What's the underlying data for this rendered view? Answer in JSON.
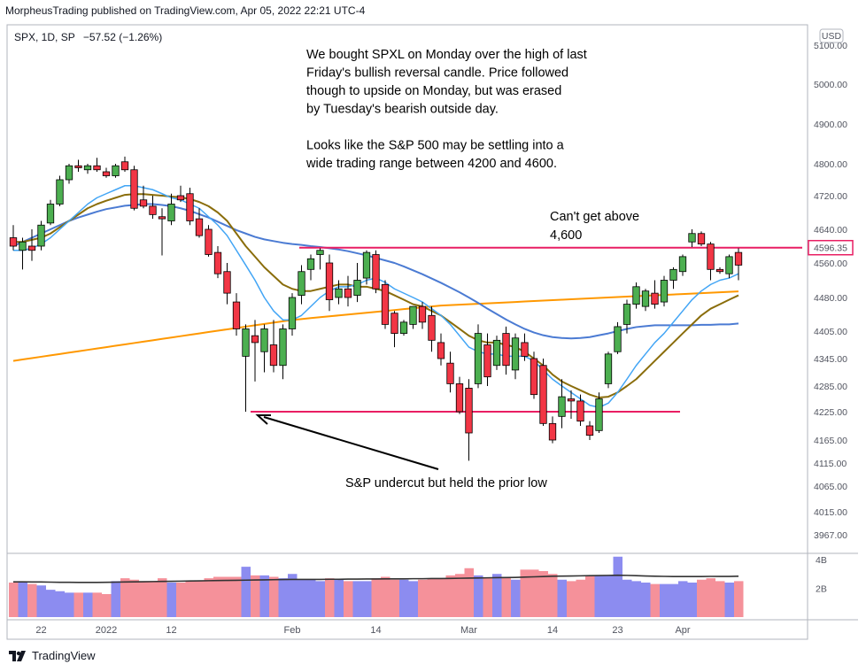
{
  "header": {
    "published": "MorpheusTrading published on TradingView.com, Apr 05, 2022 22:21 UTC-4"
  },
  "legend": {
    "symbol": "SPX, 1D, SP",
    "change": "−57.52 (−1.26%)",
    "currency": "USD"
  },
  "annotations": {
    "note_lines": [
      "We bought SPXL on Monday over the high of last",
      "Friday's bullish reversal candle.  Price followed",
      "though to upside on Monday, but was erased",
      "by Tuesday's bearish outside day.",
      "",
      "Looks like the S&P 500 may be settling into a",
      " wide trading range between 4200 and 4600."
    ],
    "resistance_lines": [
      "Can't get above",
      "4,600"
    ],
    "support_note": "S&P undercut but held the prior low"
  },
  "footer": {
    "brand": "TradingView"
  },
  "colors": {
    "up": "#4caf50",
    "down": "#f23645",
    "ma_blue": "#4b7bd3",
    "ma_orange": "#ff9800",
    "ma_olive": "#8a6d0b",
    "ma_light": "#42a5f5",
    "hline": "#e91e63",
    "vol_up": "#8c8cf0",
    "vol_down": "#f5919a",
    "vol_avg": "#333333"
  },
  "chart_data": {
    "type": "candlestick",
    "symbol": "SPX",
    "timeframe": "1D",
    "last_price_label": "4596.35",
    "price_ticks": [
      5100,
      5000,
      4900,
      4800,
      4720,
      4640,
      4560,
      4480,
      4405,
      4345,
      4285,
      4225,
      4165,
      4115,
      4065,
      4015,
      3967
    ],
    "price_tick_labels": [
      "5100.00",
      "5000.00",
      "4900.00",
      "4800.00",
      "4720.00",
      "4640.00",
      "4560.00",
      "4480.00",
      "4405.00",
      "4345.00",
      "4285.00",
      "4225.00",
      "4165.00",
      "4115.00",
      "4065.00",
      "4015.00",
      "3967.00"
    ],
    "date_ticks": [
      {
        "label": "22",
        "index": 3
      },
      {
        "label": "2022",
        "index": 10
      },
      {
        "label": "12",
        "index": 17
      },
      {
        "label": "Feb",
        "index": 30
      },
      {
        "label": "14",
        "index": 39
      },
      {
        "label": "Mar",
        "index": 49
      },
      {
        "label": "14",
        "index": 58
      },
      {
        "label": "23",
        "index": 65
      },
      {
        "label": "Apr",
        "index": 72
      }
    ],
    "candles": [
      {
        "o": 4620,
        "h": 4650,
        "l": 4590,
        "c": 4600
      },
      {
        "o": 4590,
        "h": 4620,
        "l": 4545,
        "c": 4610
      },
      {
        "o": 4600,
        "h": 4640,
        "l": 4565,
        "c": 4590
      },
      {
        "o": 4600,
        "h": 4660,
        "l": 4590,
        "c": 4650
      },
      {
        "o": 4655,
        "h": 4710,
        "l": 4650,
        "c": 4700
      },
      {
        "o": 4700,
        "h": 4770,
        "l": 4695,
        "c": 4760
      },
      {
        "o": 4760,
        "h": 4800,
        "l": 4750,
        "c": 4795
      },
      {
        "o": 4795,
        "h": 4810,
        "l": 4780,
        "c": 4790
      },
      {
        "o": 4785,
        "h": 4800,
        "l": 4775,
        "c": 4795
      },
      {
        "o": 4795,
        "h": 4815,
        "l": 4780,
        "c": 4785
      },
      {
        "o": 4780,
        "h": 4790,
        "l": 4765,
        "c": 4770
      },
      {
        "o": 4770,
        "h": 4800,
        "l": 4765,
        "c": 4795
      },
      {
        "o": 4805,
        "h": 4818,
        "l": 4780,
        "c": 4785
      },
      {
        "o": 4785,
        "h": 4795,
        "l": 4685,
        "c": 4690
      },
      {
        "o": 4710,
        "h": 4745,
        "l": 4690,
        "c": 4695
      },
      {
        "o": 4695,
        "h": 4720,
        "l": 4665,
        "c": 4675
      },
      {
        "o": 4670,
        "h": 4690,
        "l": 4578,
        "c": 4665
      },
      {
        "o": 4660,
        "h": 4725,
        "l": 4650,
        "c": 4700
      },
      {
        "o": 4720,
        "h": 4745,
        "l": 4705,
        "c": 4710
      },
      {
        "o": 4725,
        "h": 4740,
        "l": 4650,
        "c": 4660
      },
      {
        "o": 4665,
        "h": 4690,
        "l": 4620,
        "c": 4625
      },
      {
        "o": 4640,
        "h": 4650,
        "l": 4575,
        "c": 4580
      },
      {
        "o": 4585,
        "h": 4600,
        "l": 4525,
        "c": 4535
      },
      {
        "o": 4540,
        "h": 4560,
        "l": 4465,
        "c": 4490
      },
      {
        "o": 4470,
        "h": 4490,
        "l": 4395,
        "c": 4410
      },
      {
        "o": 4350,
        "h": 4420,
        "l": 4225,
        "c": 4410
      },
      {
        "o": 4395,
        "h": 4430,
        "l": 4295,
        "c": 4380
      },
      {
        "o": 4360,
        "h": 4420,
        "l": 4315,
        "c": 4410
      },
      {
        "o": 4375,
        "h": 4430,
        "l": 4315,
        "c": 4330
      },
      {
        "o": 4330,
        "h": 4420,
        "l": 4300,
        "c": 4410
      },
      {
        "o": 4410,
        "h": 4490,
        "l": 4395,
        "c": 4480
      },
      {
        "o": 4485,
        "h": 4555,
        "l": 4465,
        "c": 4540
      },
      {
        "o": 4545,
        "h": 4580,
        "l": 4520,
        "c": 4570
      },
      {
        "o": 4580,
        "h": 4595,
        "l": 4545,
        "c": 4590
      },
      {
        "o": 4560,
        "h": 4580,
        "l": 4450,
        "c": 4475
      },
      {
        "o": 4480,
        "h": 4520,
        "l": 4465,
        "c": 4500
      },
      {
        "o": 4500,
        "h": 4530,
        "l": 4460,
        "c": 4480
      },
      {
        "o": 4485,
        "h": 4560,
        "l": 4470,
        "c": 4520
      },
      {
        "o": 4525,
        "h": 4590,
        "l": 4510,
        "c": 4585
      },
      {
        "o": 4580,
        "h": 4590,
        "l": 4490,
        "c": 4500
      },
      {
        "o": 4510,
        "h": 4520,
        "l": 4410,
        "c": 4420
      },
      {
        "o": 4445,
        "h": 4450,
        "l": 4370,
        "c": 4400
      },
      {
        "o": 4400,
        "h": 4430,
        "l": 4395,
        "c": 4425
      },
      {
        "o": 4420,
        "h": 4460,
        "l": 4410,
        "c": 4460
      },
      {
        "o": 4460,
        "h": 4470,
        "l": 4410,
        "c": 4425
      },
      {
        "o": 4440,
        "h": 4460,
        "l": 4360,
        "c": 4385
      },
      {
        "o": 4380,
        "h": 4400,
        "l": 4330,
        "c": 4345
      },
      {
        "o": 4335,
        "h": 4360,
        "l": 4270,
        "c": 4290
      },
      {
        "o": 4290,
        "h": 4305,
        "l": 4220,
        "c": 4225
      },
      {
        "o": 4280,
        "h": 4300,
        "l": 4120,
        "c": 4180
      },
      {
        "o": 4290,
        "h": 4420,
        "l": 4280,
        "c": 4400
      },
      {
        "o": 4375,
        "h": 4400,
        "l": 4285,
        "c": 4305
      },
      {
        "o": 4330,
        "h": 4395,
        "l": 4320,
        "c": 4385
      },
      {
        "o": 4400,
        "h": 4415,
        "l": 4310,
        "c": 4330
      },
      {
        "o": 4320,
        "h": 4400,
        "l": 4300,
        "c": 4390
      },
      {
        "o": 4380,
        "h": 4400,
        "l": 4340,
        "c": 4350
      },
      {
        "o": 4345,
        "h": 4360,
        "l": 4255,
        "c": 4265
      },
      {
        "o": 4330,
        "h": 4345,
        "l": 4195,
        "c": 4200
      },
      {
        "o": 4200,
        "h": 4215,
        "l": 4158,
        "c": 4165
      },
      {
        "o": 4215,
        "h": 4300,
        "l": 4190,
        "c": 4260
      },
      {
        "o": 4255,
        "h": 4275,
        "l": 4210,
        "c": 4250
      },
      {
        "o": 4250,
        "h": 4265,
        "l": 4195,
        "c": 4205
      },
      {
        "o": 4195,
        "h": 4205,
        "l": 4165,
        "c": 4175
      },
      {
        "o": 4185,
        "h": 4270,
        "l": 4180,
        "c": 4255
      },
      {
        "o": 4290,
        "h": 4360,
        "l": 4280,
        "c": 4355
      },
      {
        "o": 4360,
        "h": 4425,
        "l": 4355,
        "c": 4415
      },
      {
        "o": 4420,
        "h": 4475,
        "l": 4400,
        "c": 4465
      },
      {
        "o": 4465,
        "h": 4515,
        "l": 4455,
        "c": 4505
      },
      {
        "o": 4460,
        "h": 4500,
        "l": 4450,
        "c": 4495
      },
      {
        "o": 4490,
        "h": 4520,
        "l": 4455,
        "c": 4465
      },
      {
        "o": 4470,
        "h": 4530,
        "l": 4460,
        "c": 4520
      },
      {
        "o": 4520,
        "h": 4550,
        "l": 4500,
        "c": 4545
      },
      {
        "o": 4540,
        "h": 4580,
        "l": 4530,
        "c": 4575
      },
      {
        "o": 4610,
        "h": 4640,
        "l": 4598,
        "c": 4630
      },
      {
        "o": 4630,
        "h": 4635,
        "l": 4600,
        "c": 4605
      },
      {
        "o": 4605,
        "h": 4610,
        "l": 4520,
        "c": 4545
      },
      {
        "o": 4545,
        "h": 4550,
        "l": 4535,
        "c": 4540
      },
      {
        "o": 4535,
        "h": 4580,
        "l": 4525,
        "c": 4575
      },
      {
        "o": 4585,
        "h": 4595,
        "l": 4520,
        "c": 4555
      }
    ],
    "ma_fast": [
      4590,
      4590,
      4595,
      4605,
      4620,
      4640,
      4660,
      4680,
      4700,
      4715,
      4725,
      4735,
      4745,
      4745,
      4740,
      4735,
      4725,
      4715,
      4710,
      4700,
      4690,
      4670,
      4650,
      4625,
      4590,
      4555,
      4520,
      4480,
      4450,
      4430,
      4430,
      4440,
      4460,
      4480,
      4495,
      4505,
      4505,
      4510,
      4520,
      4525,
      4515,
      4500,
      4490,
      4480,
      4470,
      4455,
      4440,
      4420,
      4395,
      4370,
      4360,
      4355,
      4355,
      4350,
      4350,
      4350,
      4340,
      4320,
      4300,
      4285,
      4270,
      4255,
      4240,
      4235,
      4245,
      4270,
      4300,
      4330,
      4355,
      4380,
      4400,
      4425,
      4450,
      4475,
      4495,
      4510,
      4520,
      4525,
      4535
    ],
    "ma_mid": [
      4610,
      4610,
      4615,
      4620,
      4630,
      4645,
      4660,
      4675,
      4690,
      4700,
      4708,
      4715,
      4722,
      4724,
      4724,
      4722,
      4720,
      4718,
      4716,
      4712,
      4705,
      4695,
      4680,
      4660,
      4630,
      4600,
      4575,
      4550,
      4530,
      4510,
      4500,
      4495,
      4495,
      4500,
      4505,
      4510,
      4510,
      4505,
      4505,
      4500,
      4495,
      4485,
      4475,
      4465,
      4460,
      4450,
      4440,
      4425,
      4410,
      4395,
      4385,
      4380,
      4380,
      4375,
      4370,
      4360,
      4345,
      4330,
      4310,
      4295,
      4285,
      4275,
      4265,
      4258,
      4260,
      4270,
      4285,
      4300,
      4320,
      4340,
      4360,
      4380,
      4400,
      4420,
      4440,
      4455,
      4465,
      4475,
      4485
    ],
    "ma_slow": [
      4600,
      4610,
      4620,
      4630,
      4640,
      4650,
      4660,
      4668,
      4675,
      4682,
      4688,
      4692,
      4696,
      4698,
      4700,
      4700,
      4698,
      4695,
      4690,
      4684,
      4676,
      4668,
      4658,
      4648,
      4638,
      4630,
      4622,
      4616,
      4612,
      4608,
      4605,
      4603,
      4600,
      4598,
      4595,
      4592,
      4588,
      4583,
      4578,
      4572,
      4566,
      4560,
      4552,
      4543,
      4534,
      4524,
      4514,
      4503,
      4492,
      4480,
      4468,
      4455,
      4443,
      4431,
      4420,
      4410,
      4402,
      4396,
      4392,
      4390,
      4389,
      4390,
      4392,
      4396,
      4400,
      4405,
      4410,
      4414,
      4416,
      4418,
      4418,
      4418,
      4418,
      4418,
      4419,
      4419,
      4420,
      4420,
      4422
    ],
    "ma_long": [
      4340,
      4343,
      4346,
      4349,
      4352,
      4355,
      4358,
      4361,
      4364,
      4367,
      4370,
      4373,
      4376,
      4379,
      4382,
      4385,
      4388,
      4391,
      4394,
      4397,
      4400,
      4403,
      4406,
      4409,
      4412,
      4415,
      4418,
      4421,
      4424,
      4427,
      4430,
      4432,
      4434,
      4436,
      4438,
      4440,
      4442,
      4444,
      4446,
      4448,
      4450,
      4452,
      4454,
      4456,
      4458,
      4460,
      4462,
      4463,
      4464,
      4465,
      4466,
      4467,
      4468,
      4469,
      4470,
      4471,
      4472,
      4473,
      4474,
      4475,
      4476,
      4477,
      4478,
      4479,
      4480,
      4481,
      4482,
      4483,
      4484,
      4485,
      4486,
      4487,
      4488,
      4489,
      4490,
      4491,
      4492,
      4493,
      4494
    ],
    "horizontal_lines": [
      4596.35,
      4225
    ],
    "volume_axis_labels": [
      "4B",
      "2B"
    ],
    "volume_max": 4.0,
    "volume": [
      2.4,
      2.4,
      2.3,
      2.2,
      1.9,
      1.8,
      1.7,
      1.7,
      1.7,
      1.7,
      1.6,
      2.5,
      2.7,
      2.6,
      2.5,
      2.5,
      2.7,
      2.4,
      2.4,
      2.5,
      2.5,
      2.7,
      2.8,
      2.8,
      2.8,
      3.5,
      2.9,
      2.9,
      2.8,
      2.7,
      3.0,
      2.6,
      2.6,
      2.5,
      2.7,
      2.6,
      2.5,
      2.5,
      2.5,
      2.7,
      2.8,
      2.6,
      2.6,
      2.5,
      2.6,
      2.7,
      2.7,
      2.9,
      3.0,
      3.4,
      2.9,
      2.7,
      3.0,
      2.8,
      2.6,
      3.3,
      3.3,
      3.2,
      3.0,
      2.6,
      2.5,
      2.6,
      2.9,
      2.9,
      2.9,
      4.2,
      2.6,
      2.5,
      2.4,
      2.3,
      2.3,
      2.3,
      2.5,
      2.4,
      2.6,
      2.7,
      2.5,
      2.4,
      2.5
    ],
    "volume_avg": [
      2.45,
      2.45,
      2.44,
      2.44,
      2.43,
      2.42,
      2.42,
      2.41,
      2.41,
      2.41,
      2.42,
      2.43,
      2.44,
      2.45,
      2.46,
      2.47,
      2.48,
      2.49,
      2.5,
      2.51,
      2.52,
      2.53,
      2.54,
      2.55,
      2.56,
      2.57,
      2.58,
      2.59,
      2.6,
      2.61,
      2.62,
      2.62,
      2.62,
      2.62,
      2.63,
      2.63,
      2.64,
      2.64,
      2.65,
      2.65,
      2.66,
      2.66,
      2.66,
      2.67,
      2.67,
      2.68,
      2.68,
      2.69,
      2.7,
      2.71,
      2.72,
      2.73,
      2.74,
      2.75,
      2.76,
      2.78,
      2.8,
      2.82,
      2.84,
      2.85,
      2.86,
      2.87,
      2.88,
      2.89,
      2.9,
      2.91,
      2.9,
      2.88,
      2.86,
      2.84,
      2.83,
      2.82,
      2.82,
      2.82,
      2.82,
      2.83,
      2.83,
      2.83,
      2.84
    ]
  }
}
